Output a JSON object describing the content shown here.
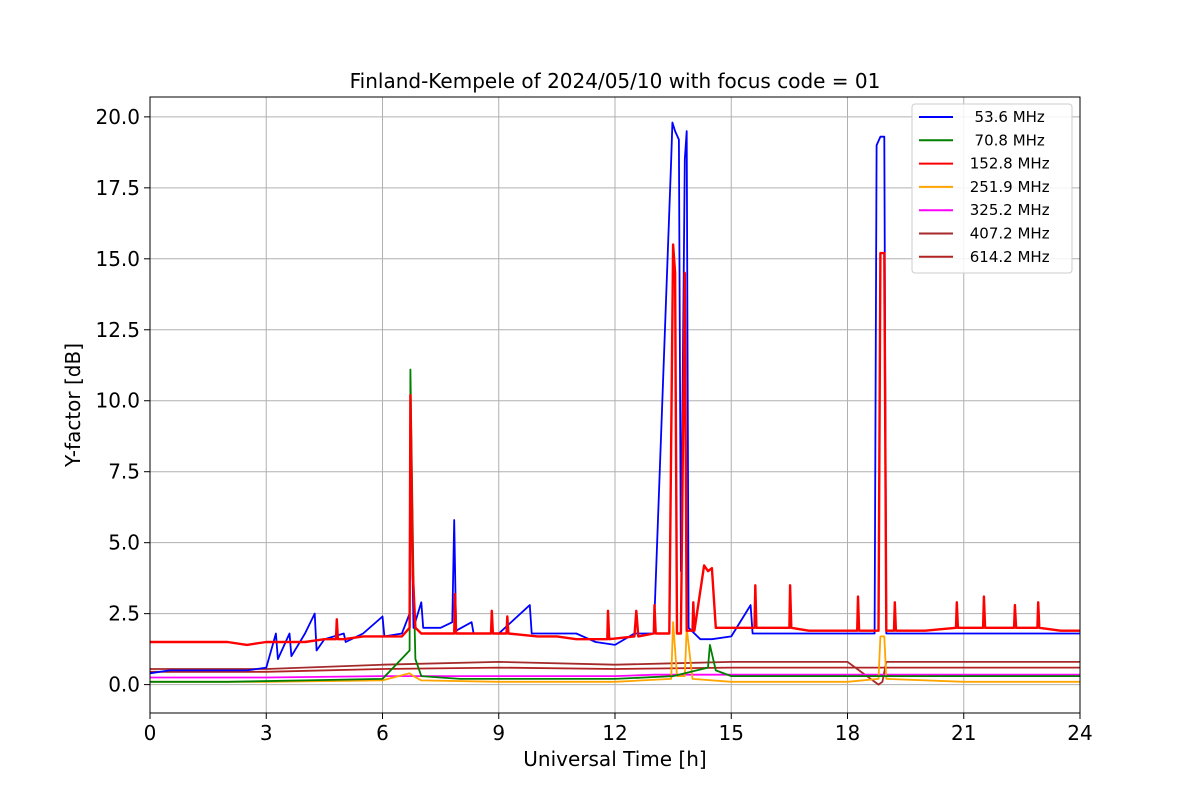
{
  "chart_data": {
    "type": "line",
    "title": "Finland-Kempele of 2024/05/10 with focus code = 01",
    "xlabel": "Universal Time [h]",
    "ylabel": "Y-factor [dB]",
    "xlim": [
      0,
      24
    ],
    "ylim": [
      -1.0,
      20.7
    ],
    "xticks": [
      "0",
      "3",
      "6",
      "9",
      "12",
      "15",
      "18",
      "21",
      "24"
    ],
    "yticks": [
      "0.0",
      "2.5",
      "5.0",
      "7.5",
      "10.0",
      "12.5",
      "15.0",
      "17.5",
      "20.0"
    ],
    "grid": true,
    "legend_position": "top-right",
    "series": [
      {
        "name": "  53.6 MHz",
        "color": "#0000ff",
        "x": [
          0,
          0.5,
          1,
          1.5,
          2,
          2.5,
          3,
          3.25,
          3.3,
          3.6,
          3.65,
          4.0,
          4.25,
          4.3,
          4.5,
          5.0,
          5.05,
          5.5,
          6.0,
          6.05,
          6.5,
          6.7,
          6.72,
          6.8,
          7.0,
          7.05,
          7.5,
          7.8,
          7.85,
          7.9,
          8.3,
          8.35,
          9.0,
          9.8,
          9.85,
          10.5,
          11.0,
          11.5,
          12.0,
          12.5,
          13.0,
          13.45,
          13.48,
          13.55,
          13.65,
          13.7,
          13.8,
          13.85,
          13.9,
          14.2,
          14.5,
          15.0,
          15.5,
          15.55,
          16.0,
          17.0,
          18.0,
          18.7,
          18.75,
          18.85,
          18.95,
          19.0,
          19.5,
          20.0,
          21.0,
          22.0,
          23.0,
          24.0
        ],
        "y": [
          0.4,
          0.5,
          0.5,
          0.5,
          0.5,
          0.5,
          0.6,
          1.8,
          0.9,
          1.8,
          1.0,
          1.8,
          2.5,
          1.2,
          1.6,
          1.8,
          1.5,
          1.8,
          2.4,
          1.7,
          1.8,
          2.5,
          8.5,
          2.0,
          2.9,
          2.0,
          2.0,
          2.2,
          5.8,
          1.9,
          2.2,
          1.8,
          1.8,
          2.8,
          1.8,
          1.8,
          1.8,
          1.5,
          1.4,
          1.8,
          1.8,
          18.5,
          19.8,
          19.5,
          19.2,
          4.0,
          18.5,
          19.5,
          2.0,
          1.6,
          1.6,
          1.7,
          2.8,
          1.8,
          1.8,
          1.8,
          1.8,
          1.8,
          19.0,
          19.3,
          19.3,
          1.8,
          1.8,
          1.8,
          1.8,
          1.8,
          1.8,
          1.8
        ]
      },
      {
        "name": "  70.8 MHz",
        "color": "#008000",
        "x": [
          0,
          2,
          4,
          6,
          6.7,
          6.72,
          6.8,
          6.85,
          7.0,
          8,
          10,
          12,
          13.5,
          14.4,
          14.45,
          14.6,
          15,
          18,
          21,
          24
        ],
        "y": [
          0.1,
          0.1,
          0.15,
          0.2,
          1.2,
          11.1,
          3.7,
          0.9,
          0.3,
          0.2,
          0.2,
          0.2,
          0.3,
          0.6,
          1.4,
          0.5,
          0.3,
          0.3,
          0.3,
          0.3
        ]
      },
      {
        "name": " 152.8 MHz",
        "color": "#ff0000",
        "x": [
          0,
          0.5,
          1,
          1.5,
          2,
          2.5,
          3,
          3.5,
          4,
          4.5,
          4.8,
          4.82,
          4.85,
          5,
          5.5,
          6,
          6.5,
          6.7,
          6.72,
          6.78,
          6.85,
          7,
          7.5,
          7.85,
          7.87,
          7.9,
          8.5,
          8.8,
          8.82,
          8.85,
          9.2,
          9.22,
          9.25,
          10,
          10.5,
          11,
          11.5,
          11.8,
          11.82,
          11.85,
          12.5,
          12.55,
          12.6,
          13.0,
          13.02,
          13.05,
          13.4,
          13.5,
          13.55,
          13.6,
          13.7,
          13.8,
          13.85,
          13.9,
          14.0,
          14.02,
          14.05,
          14.3,
          14.4,
          14.5,
          14.6,
          15,
          15.5,
          15.6,
          15.62,
          15.65,
          16.5,
          16.52,
          16.55,
          17,
          18,
          18.25,
          18.27,
          18.3,
          18.8,
          18.85,
          18.95,
          19.0,
          19.2,
          19.22,
          19.25,
          20,
          20.8,
          20.82,
          20.85,
          21.5,
          21.52,
          21.55,
          22.3,
          22.32,
          22.35,
          22.9,
          22.92,
          22.95,
          23.5,
          24
        ],
        "y": [
          1.5,
          1.5,
          1.5,
          1.5,
          1.5,
          1.4,
          1.5,
          1.5,
          1.5,
          1.6,
          1.6,
          2.3,
          1.6,
          1.6,
          1.7,
          1.7,
          1.7,
          2.0,
          10.2,
          4.0,
          2.0,
          1.8,
          1.8,
          1.8,
          3.2,
          1.8,
          1.8,
          1.8,
          2.6,
          1.8,
          1.8,
          2.4,
          1.8,
          1.7,
          1.7,
          1.6,
          1.6,
          1.6,
          2.6,
          1.6,
          1.7,
          2.6,
          1.7,
          1.8,
          2.8,
          1.8,
          1.8,
          15.5,
          14.5,
          1.8,
          1.8,
          14.5,
          1.9,
          1.9,
          1.9,
          2.9,
          1.9,
          4.2,
          4.0,
          4.1,
          2.0,
          2.0,
          2.0,
          2.0,
          3.5,
          2.0,
          2.0,
          3.5,
          2.0,
          1.9,
          1.9,
          1.9,
          3.1,
          1.9,
          1.9,
          15.2,
          15.2,
          1.9,
          1.9,
          2.9,
          1.9,
          1.9,
          2.0,
          2.9,
          2.0,
          2.0,
          3.1,
          2.0,
          2.0,
          2.8,
          2.0,
          2.0,
          2.9,
          2.0,
          1.9,
          1.9
        ]
      },
      {
        "name": " 251.9 MHz",
        "color": "#ffa500",
        "x": [
          0,
          3,
          6,
          6.7,
          6.8,
          7,
          9,
          12,
          13.45,
          13.5,
          13.6,
          13.8,
          13.85,
          14,
          15,
          18,
          18.8,
          18.85,
          18.95,
          19,
          21,
          24
        ],
        "y": [
          0.1,
          0.1,
          0.15,
          0.4,
          0.3,
          0.15,
          0.1,
          0.1,
          0.2,
          2.2,
          0.3,
          0.3,
          2.0,
          0.2,
          0.1,
          0.1,
          0.2,
          1.7,
          1.7,
          0.2,
          0.1,
          0.1
        ]
      },
      {
        "name": " 325.2 MHz",
        "color": "#ff00ff",
        "x": [
          0,
          3,
          6,
          9,
          12,
          13,
          15,
          18,
          21,
          24
        ],
        "y": [
          0.25,
          0.25,
          0.3,
          0.3,
          0.3,
          0.35,
          0.35,
          0.35,
          0.35,
          0.35
        ]
      },
      {
        "name": " 407.2 MHz",
        "color": "#a52a2a",
        "x": [
          0,
          3,
          6,
          9,
          12,
          13.5,
          15,
          18,
          18.8,
          18.9,
          19,
          21,
          24
        ],
        "y": [
          0.55,
          0.55,
          0.7,
          0.8,
          0.7,
          0.75,
          0.8,
          0.8,
          0.0,
          0.1,
          0.8,
          0.8,
          0.8
        ]
      },
      {
        "name": " 614.2 MHz",
        "color": "#b22222",
        "x": [
          0,
          3,
          6,
          9,
          12,
          15,
          18,
          21,
          24
        ],
        "y": [
          0.45,
          0.45,
          0.55,
          0.6,
          0.55,
          0.6,
          0.6,
          0.6,
          0.6
        ]
      }
    ]
  }
}
